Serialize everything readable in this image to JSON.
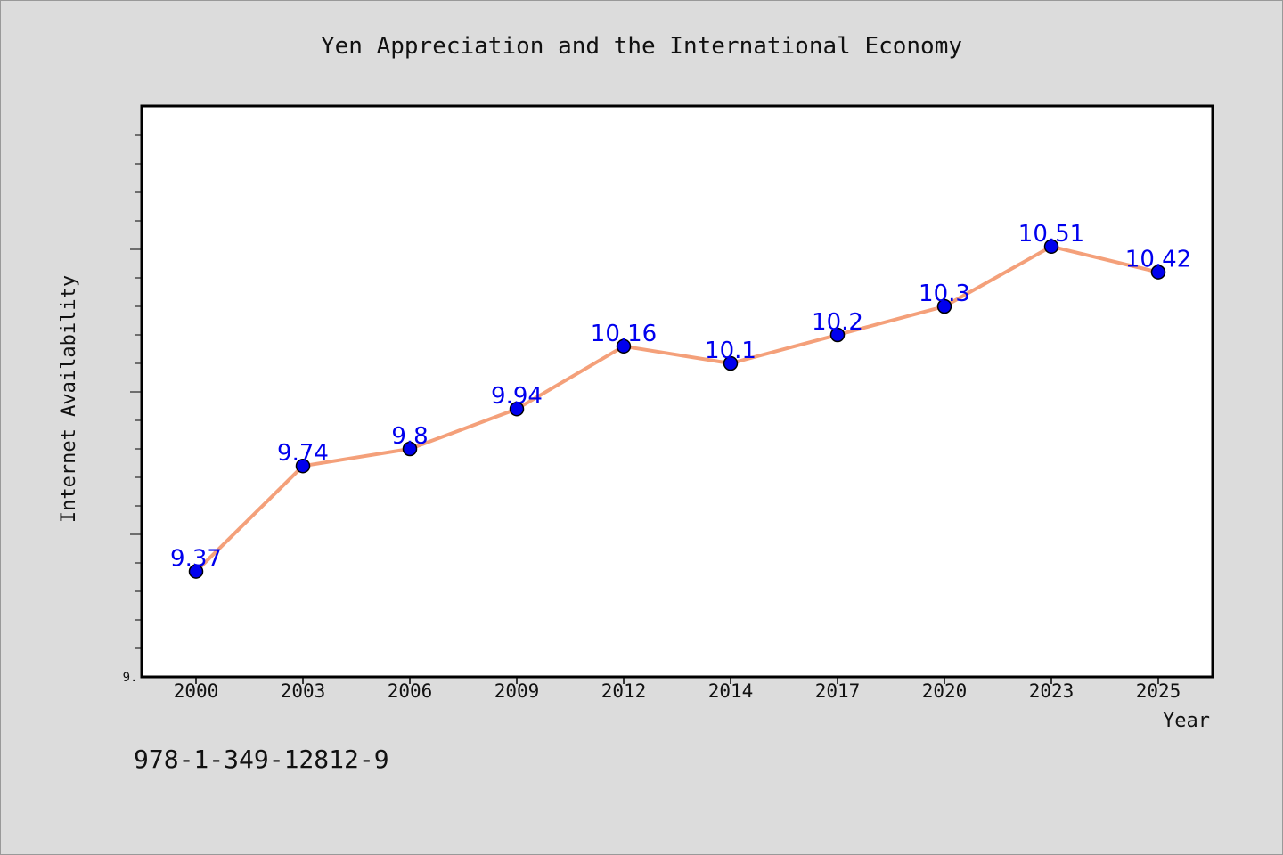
{
  "chart_data": {
    "type": "line",
    "title": "Yen Appreciation and the International Economy",
    "xlabel": "Year",
    "ylabel": "Internet Availability",
    "categories": [
      "2000",
      "2003",
      "2006",
      "2009",
      "2012",
      "2014",
      "2017",
      "2020",
      "2023",
      "2025"
    ],
    "values": [
      9.37,
      9.74,
      9.8,
      9.94,
      10.16,
      10.1,
      10.2,
      10.3,
      10.51,
      10.42
    ],
    "data_labels": [
      "9.37",
      "9.74",
      "9.8",
      "9.94",
      "10.16",
      "10.1",
      "10.2",
      "10.3",
      "10.51",
      "10.42"
    ],
    "ylim": [
      9.0,
      11.0
    ],
    "y_tick_labels_visible": [
      "9."
    ],
    "grid": false,
    "legend": "none",
    "line_color": "#f4a07a",
    "marker_color": "#0000ee",
    "label_color": "#0000ee"
  },
  "footer": {
    "isbn": "978-1-349-12812-9"
  }
}
